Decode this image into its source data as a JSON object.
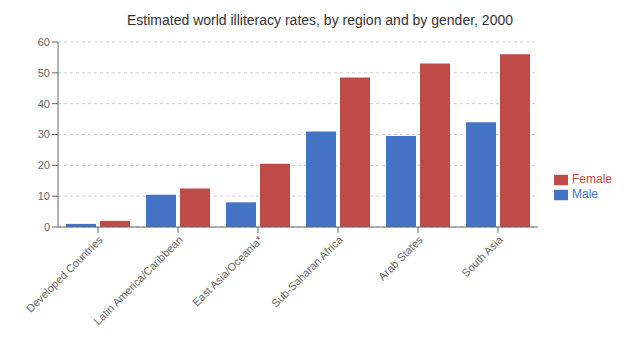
{
  "chart_data": {
    "type": "bar",
    "title": "Estimated world illiteracy rates, by region and by gender, 2000",
    "categories": [
      "Developed Countries",
      "Latin America/Caribbean",
      "East Asia/Oceania*",
      "Sub-Saharan Africa",
      "Arab States",
      "South Asia"
    ],
    "series": [
      {
        "name": "Male",
        "color": "#4472C4",
        "values": [
          1,
          10.5,
          8,
          31,
          29.5,
          34
        ]
      },
      {
        "name": "Female",
        "color": "#BE4B48",
        "values": [
          2,
          12.5,
          20.5,
          48.5,
          53,
          56
        ]
      }
    ],
    "ylim": [
      0,
      60
    ],
    "yticks": [
      0,
      10,
      20,
      30,
      40,
      50,
      60
    ],
    "grid": true,
    "legend": "right"
  }
}
